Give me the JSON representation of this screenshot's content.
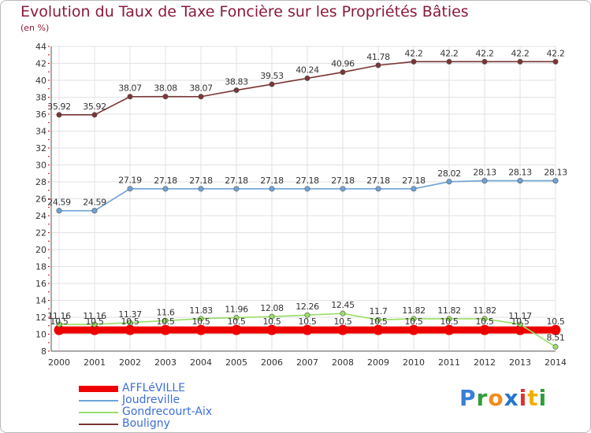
{
  "title": "Evolution du Taux de Taxe Foncière sur les Propriétés Bâties",
  "unit": "(en %)",
  "brand": {
    "letters": [
      "P",
      "r",
      "o",
      "x",
      "i",
      "t",
      "i"
    ],
    "colors": [
      "#3a7fd6",
      "#2e9e3a",
      "#f28c1c",
      "#2277cc",
      "#e03030",
      "#f0b000",
      "#2e9e3a"
    ]
  },
  "chart_data": {
    "type": "line",
    "categories": [
      "2000",
      "2001",
      "2002",
      "2003",
      "2004",
      "2005",
      "2006",
      "2007",
      "2008",
      "2009",
      "2010",
      "2011",
      "2012",
      "2013",
      "2014"
    ],
    "ylim": [
      8,
      44
    ],
    "yticks": [
      8,
      10,
      12,
      14,
      16,
      18,
      20,
      22,
      24,
      26,
      28,
      30,
      32,
      34,
      36,
      38,
      40,
      42,
      44
    ],
    "grid": true,
    "legend_position": "bottom-left",
    "series": [
      {
        "name": "AFFLéVILLE",
        "color": "#ee0000",
        "values": [
          10.5,
          10.5,
          10.5,
          10.5,
          10.5,
          10.5,
          10.5,
          10.5,
          10.5,
          10.5,
          10.5,
          10.5,
          10.5,
          10.5,
          10.5
        ],
        "labels": [
          "10.5",
          "10.5",
          "10.5",
          "10.5",
          "10.5",
          "10.5",
          "10.5",
          "10.5",
          "10.5",
          "10.5",
          "10.5",
          "10.5",
          "10.5",
          "10.5",
          "10.5"
        ]
      },
      {
        "name": "Joudreville",
        "color": "#6fa2d6",
        "values": [
          24.59,
          24.59,
          27.19,
          27.18,
          27.18,
          27.18,
          27.18,
          27.18,
          27.18,
          27.18,
          27.18,
          28.02,
          28.13,
          28.13,
          28.13
        ],
        "labels": [
          "24.59",
          "24.59",
          "27.19",
          "27.18",
          "27.18",
          "27.18",
          "27.18",
          "27.18",
          "27.18",
          "27.18",
          "27.18",
          "28.02",
          "28.13",
          "28.13",
          "28.13"
        ]
      },
      {
        "name": "Gondrecourt-Aix",
        "color": "#99dd66",
        "values": [
          11.16,
          11.16,
          11.37,
          11.6,
          11.83,
          11.96,
          12.08,
          12.26,
          12.45,
          11.7,
          11.82,
          11.82,
          11.82,
          11.17,
          8.51
        ],
        "labels": [
          "11.16",
          "11.16",
          "11.37",
          "11.6",
          "11.83",
          "11.96",
          "12.08",
          "12.26",
          "12.45",
          "11.7",
          "11.82",
          "11.82",
          "11.82",
          "11.17",
          "8.51"
        ]
      },
      {
        "name": "Bouligny",
        "color": "#7a3535",
        "values": [
          35.92,
          35.92,
          38.07,
          38.08,
          38.07,
          38.83,
          39.53,
          40.24,
          40.96,
          41.78,
          42.2,
          42.2,
          42.2,
          42.2,
          42.2
        ],
        "labels": [
          "35.92",
          "35.92",
          "38.07",
          "38.08",
          "38.07",
          "38.83",
          "39.53",
          "40.24",
          "40.96",
          "41.78",
          "42.2",
          "42.2",
          "42.2",
          "42.2",
          "42.2"
        ]
      }
    ]
  }
}
